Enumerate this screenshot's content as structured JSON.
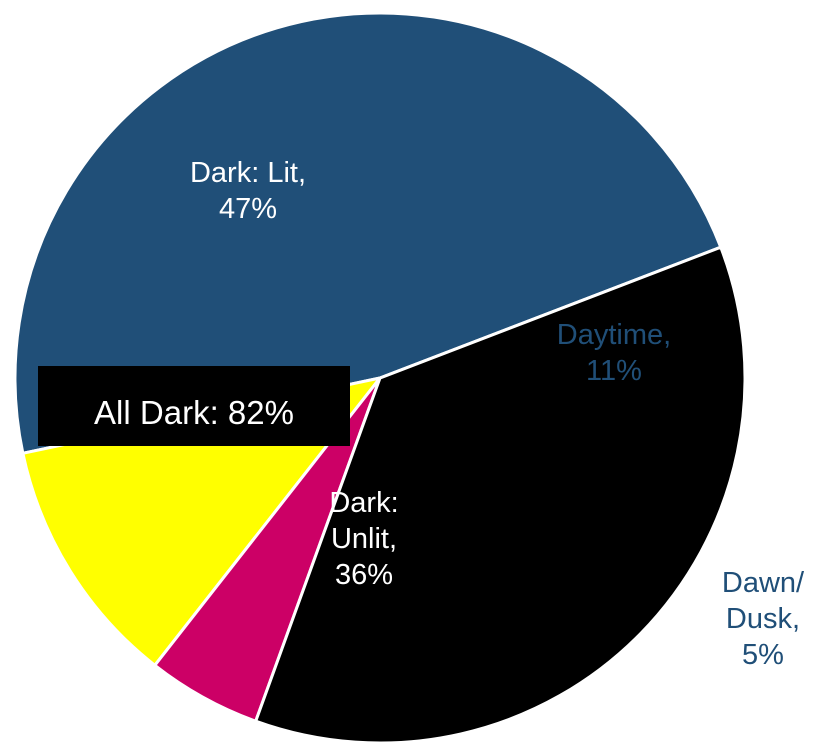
{
  "chart_data": {
    "type": "pie",
    "title": "",
    "slices": [
      {
        "label_lines": [
          "Dark: Lit,",
          "47%"
        ],
        "value": 47,
        "color": "#204f78",
        "label_color": "#ffffff"
      },
      {
        "label_lines": [
          "Daytime,",
          "11%"
        ],
        "value": 11,
        "color": "#ffff00",
        "label_color": "#204f78"
      },
      {
        "label_lines": [
          "Dawn/",
          "Dusk,",
          "5%"
        ],
        "value": 5,
        "color": "#cc0066",
        "label_color": "#204f78"
      },
      {
        "label_lines": [
          "Dark:",
          "Unlit,",
          "36%"
        ],
        "value": 36,
        "color": "#000000",
        "label_color": "#ffffff"
      }
    ],
    "callout": "All Dark: 82%"
  }
}
